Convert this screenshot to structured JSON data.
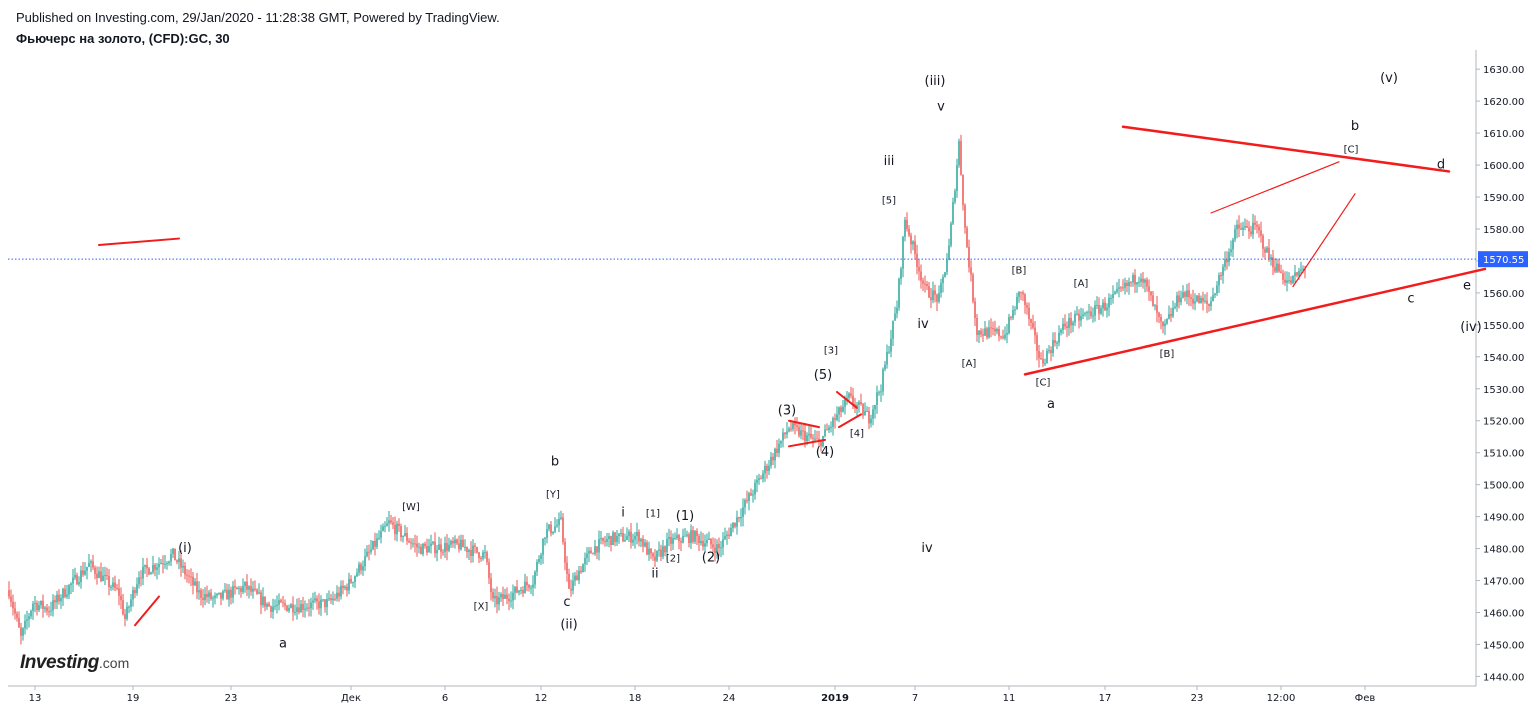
{
  "header": {
    "published": "Published on Investing.com, 29/Jan/2020 - 11:28:38 GMT, Powered by TradingView.",
    "title": "Фьючерс на золото, (CFD):GC, 30"
  },
  "logo": {
    "brand": "Investing",
    "tld": ".com"
  },
  "colors": {
    "up": "#26a69a",
    "down": "#ef5350",
    "trendline": "#f21c1c",
    "price_line": "#2962ff",
    "axis_text": "#131722"
  },
  "chart_data": {
    "type": "candlestick",
    "ylim": [
      1437,
      1636
    ],
    "y_ticks": [
      1440,
      1450,
      1460,
      1470,
      1480,
      1490,
      1500,
      1510,
      1520,
      1530,
      1540,
      1550,
      1560,
      1570,
      1580,
      1590,
      1600,
      1610,
      1620,
      1630
    ],
    "y_tick_labels": [
      "1440.00",
      "1450.00",
      "1460.00",
      "1470.00",
      "1480.00",
      "1490.00",
      "1500.00",
      "1510.00",
      "1520.00",
      "1530.00",
      "1540.00",
      "1550.00",
      "1560.00",
      "1570.00",
      "1580.00",
      "1590.00",
      "1600.00",
      "1610.00",
      "1620.00",
      "1630.00"
    ],
    "x_ticks": [
      {
        "i": 13,
        "label": "13"
      },
      {
        "i": 62,
        "label": "19"
      },
      {
        "i": 111,
        "label": "23"
      },
      {
        "i": 171,
        "label": "Дек"
      },
      {
        "i": 218,
        "label": "6"
      },
      {
        "i": 266,
        "label": "12"
      },
      {
        "i": 313,
        "label": "18"
      },
      {
        "i": 360,
        "label": "24"
      },
      {
        "i": 413,
        "label": "2019"
      },
      {
        "i": 453,
        "label": "7"
      },
      {
        "i": 500,
        "label": "11"
      },
      {
        "i": 548,
        "label": "17"
      },
      {
        "i": 594,
        "label": "23"
      },
      {
        "i": 636,
        "label": "12:00"
      },
      {
        "i": 678,
        "label": "Фев"
      }
    ],
    "last_price": 1570.55,
    "last_price_label": "1570.55",
    "price_path": [
      [
        0,
        1467
      ],
      [
        6,
        1452
      ],
      [
        12,
        1463
      ],
      [
        20,
        1461
      ],
      [
        40,
        1475
      ],
      [
        55,
        1466
      ],
      [
        58,
        1458
      ],
      [
        65,
        1472
      ],
      [
        82,
        1478
      ],
      [
        95,
        1466
      ],
      [
        103,
        1464
      ],
      [
        118,
        1468
      ],
      [
        130,
        1462
      ],
      [
        145,
        1462
      ],
      [
        160,
        1463
      ],
      [
        170,
        1469
      ],
      [
        190,
        1488
      ],
      [
        205,
        1480
      ],
      [
        225,
        1481
      ],
      [
        238,
        1478
      ],
      [
        242,
        1463
      ],
      [
        252,
        1466
      ],
      [
        262,
        1470
      ],
      [
        268,
        1485
      ],
      [
        276,
        1488
      ],
      [
        280,
        1466
      ],
      [
        284,
        1472
      ],
      [
        292,
        1480
      ],
      [
        300,
        1483
      ],
      [
        315,
        1484
      ],
      [
        322,
        1476
      ],
      [
        330,
        1482
      ],
      [
        342,
        1484
      ],
      [
        355,
        1480
      ],
      [
        372,
        1498
      ],
      [
        390,
        1518
      ],
      [
        405,
        1513
      ],
      [
        420,
        1527
      ],
      [
        430,
        1521
      ],
      [
        436,
        1531
      ],
      [
        444,
        1556
      ],
      [
        448,
        1583
      ],
      [
        458,
        1561
      ],
      [
        465,
        1558
      ],
      [
        470,
        1574
      ],
      [
        475,
        1607
      ],
      [
        478,
        1580
      ],
      [
        484,
        1548
      ],
      [
        498,
        1547
      ],
      [
        506,
        1561
      ],
      [
        516,
        1538
      ],
      [
        528,
        1550
      ],
      [
        548,
        1556
      ],
      [
        566,
        1566
      ],
      [
        577,
        1548
      ],
      [
        586,
        1560
      ],
      [
        600,
        1556
      ],
      [
        614,
        1580
      ],
      [
        624,
        1580
      ],
      [
        630,
        1571
      ],
      [
        640,
        1563
      ],
      [
        648,
        1568
      ]
    ],
    "trendlines": [
      {
        "from": [
          45,
          1575
        ],
        "to": [
          85,
          1577
        ],
        "width": 2
      },
      {
        "from": [
          63,
          1456
        ],
        "to": [
          75,
          1465
        ],
        "width": 2
      },
      {
        "from": [
          390,
          1520
        ],
        "to": [
          405,
          1518
        ],
        "width": 2
      },
      {
        "from": [
          390,
          1512
        ],
        "to": [
          408,
          1514
        ],
        "width": 2
      },
      {
        "from": [
          414,
          1529
        ],
        "to": [
          424,
          1524
        ],
        "width": 2
      },
      {
        "from": [
          415,
          1518
        ],
        "to": [
          426,
          1522
        ],
        "width": 2
      },
      {
        "from": [
          508,
          1534.5
        ],
        "to": [
          738,
          1567.5
        ],
        "width": 2.5
      },
      {
        "from": [
          557,
          1612
        ],
        "to": [
          720,
          1598
        ],
        "width": 2.5
      },
      {
        "from": [
          601,
          1585
        ],
        "to": [
          665,
          1601
        ],
        "width": 1.2
      },
      {
        "from": [
          642,
          1562
        ],
        "to": [
          673,
          1591
        ],
        "width": 1.2
      }
    ],
    "annotations": [
      {
        "i": 88,
        "p": 1479,
        "text": "(i)"
      },
      {
        "i": 137,
        "p": 1449,
        "text": "a"
      },
      {
        "i": 201,
        "p": 1492,
        "text": "[W]"
      },
      {
        "i": 236,
        "p": 1461,
        "text": "[X]"
      },
      {
        "i": 273,
        "p": 1506,
        "text": "b"
      },
      {
        "i": 272,
        "p": 1496,
        "text": "[Y]"
      },
      {
        "i": 279,
        "p": 1462,
        "text": "c"
      },
      {
        "i": 280,
        "p": 1455,
        "text": "(ii)"
      },
      {
        "i": 307,
        "p": 1490,
        "text": "i"
      },
      {
        "i": 322,
        "p": 1490,
        "text": "[1]"
      },
      {
        "i": 338,
        "p": 1489,
        "text": "(1)"
      },
      {
        "i": 332,
        "p": 1476,
        "text": "[2]"
      },
      {
        "i": 323,
        "p": 1471,
        "text": "ii"
      },
      {
        "i": 351,
        "p": 1476,
        "text": "(2)"
      },
      {
        "i": 389,
        "p": 1522,
        "text": "(3)"
      },
      {
        "i": 408,
        "p": 1509,
        "text": "(4)"
      },
      {
        "i": 407,
        "p": 1533,
        "text": "(5)"
      },
      {
        "i": 411,
        "p": 1541,
        "text": "[3]"
      },
      {
        "i": 424,
        "p": 1515,
        "text": "[4]"
      },
      {
        "i": 440,
        "p": 1600,
        "text": "iii"
      },
      {
        "i": 440,
        "p": 1588,
        "text": "[5]"
      },
      {
        "i": 463,
        "p": 1625,
        "text": "(iii)"
      },
      {
        "i": 466,
        "p": 1617,
        "text": "v"
      },
      {
        "i": 457,
        "p": 1549,
        "text": "iv"
      },
      {
        "i": 459,
        "p": 1479,
        "text": "iv"
      },
      {
        "i": 480,
        "p": 1537,
        "text": "[A]"
      },
      {
        "i": 505,
        "p": 1566,
        "text": "[B]"
      },
      {
        "i": 517,
        "p": 1531,
        "text": "[C]"
      },
      {
        "i": 521,
        "p": 1524,
        "text": "a"
      },
      {
        "i": 536,
        "p": 1562,
        "text": "[A]"
      },
      {
        "i": 579,
        "p": 1540,
        "text": "[B]"
      },
      {
        "i": 673,
        "p": 1611,
        "text": "b"
      },
      {
        "i": 671,
        "p": 1604,
        "text": "[C]"
      },
      {
        "i": 690,
        "p": 1626,
        "text": "(v)"
      },
      {
        "i": 716,
        "p": 1599,
        "text": "d"
      },
      {
        "i": 729,
        "p": 1561,
        "text": "e"
      },
      {
        "i": 701,
        "p": 1557,
        "text": "c"
      },
      {
        "i": 731,
        "p": 1548,
        "text": "(iv)"
      }
    ]
  }
}
